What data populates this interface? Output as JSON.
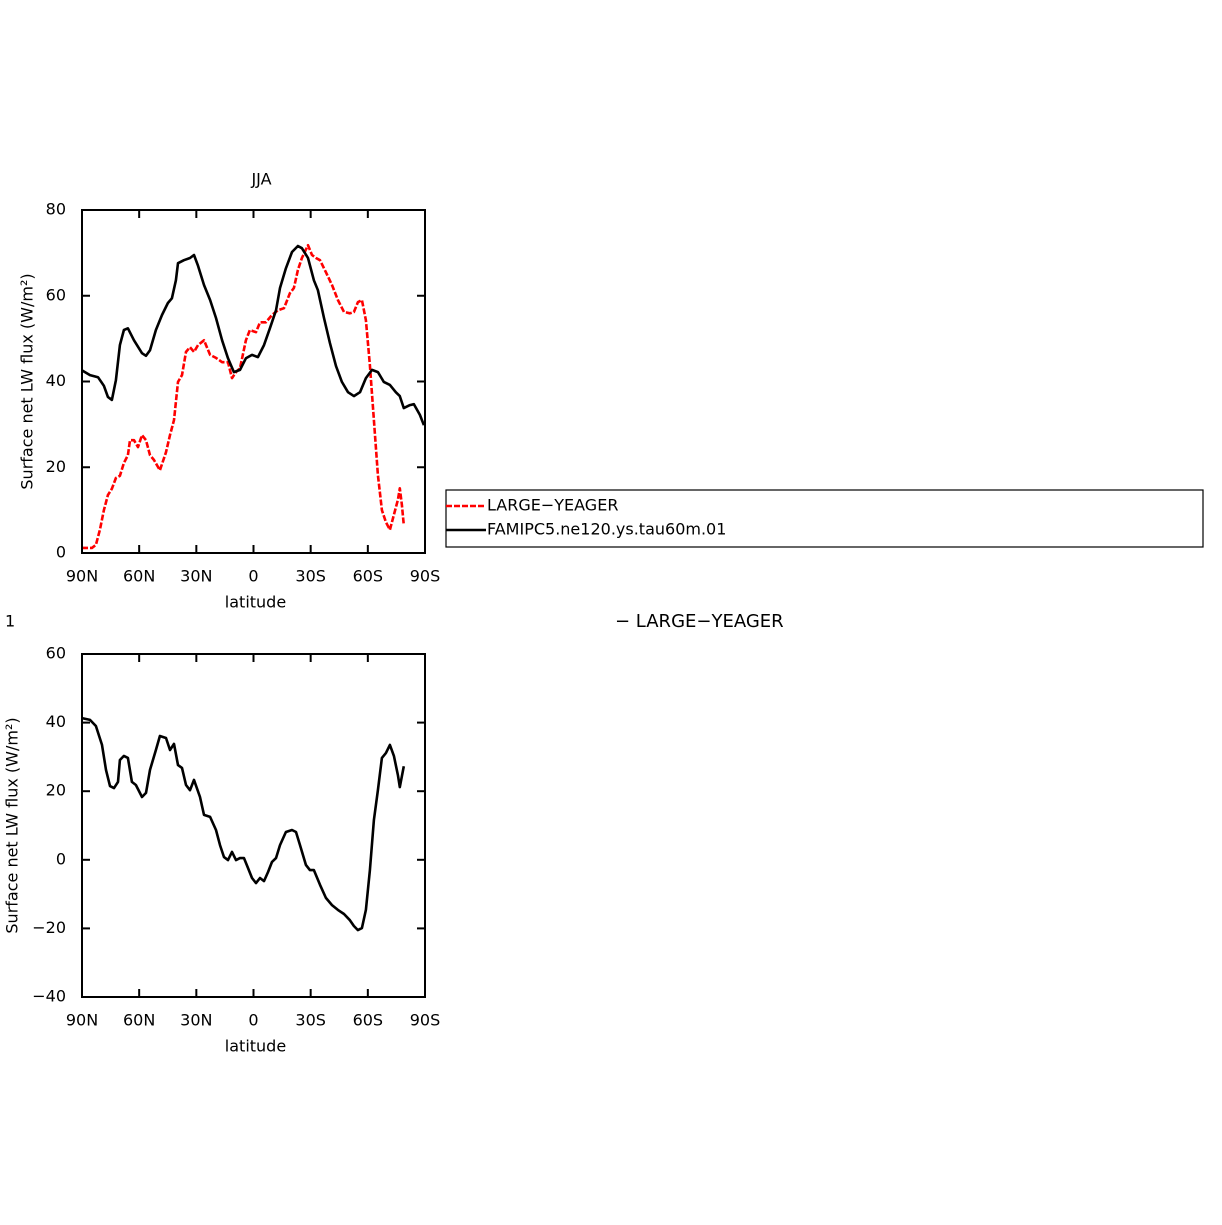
{
  "chart_data": [
    {
      "type": "line",
      "title": "JJA",
      "x_label": "latitude",
      "y_label": "Surface net LW flux (W/m²)",
      "xlim": [
        90,
        -90
      ],
      "ylim": [
        0,
        80
      ],
      "xticks": [
        {
          "value": 90,
          "label": "90N"
        },
        {
          "value": 60,
          "label": "60N"
        },
        {
          "value": 30,
          "label": "30N"
        },
        0,
        {
          "value": -30,
          "label": "30S"
        },
        {
          "value": -60,
          "label": "60S"
        },
        {
          "value": -90,
          "label": "90S"
        }
      ],
      "yticks": [
        0,
        20,
        40,
        60,
        80
      ],
      "series": [
        {
          "name": "LARGE−YEAGER",
          "color": "#ff0000",
          "linestyle": "dashed",
          "x": [
            90,
            84.8,
            82.7,
            80.6,
            78.5,
            76.4,
            74.3,
            72.2,
            70.1,
            68,
            65.9,
            64.8,
            62.7,
            60.6,
            58.5,
            56.4,
            54.3,
            52.2,
            49.1,
            45.9,
            43.8,
            41.7,
            39.6,
            37.5,
            35.4,
            33.3,
            31.2,
            29.1,
            26,
            22.8,
            19.7,
            16.5,
            13.4,
            11.3,
            9.2,
            7.1,
            4,
            1.9,
            -1.3,
            -3.4,
            -6.5,
            -9.7,
            -12.8,
            -16,
            -19.1,
            -21.2,
            -23.3,
            -25.4,
            -28.6,
            -30.7,
            -32.8,
            -34.9,
            -38,
            -41.2,
            -44.3,
            -47.5,
            -50.6,
            -52.7,
            -54.8,
            -56.9,
            -59,
            -61.1,
            -63.2,
            -65.3,
            -67.4,
            -69.5,
            -71.6,
            -73.7,
            -75.8,
            -76.8,
            -77.9,
            -78.9
          ],
          "values": [
            1.2,
            1.2,
            1.9,
            5.4,
            10,
            13.5,
            15,
            17.5,
            18,
            21,
            22.8,
            26.3,
            26.3,
            24.7,
            27.5,
            26.3,
            22.8,
            21.7,
            19.3,
            23.5,
            27.5,
            31,
            39.9,
            41.5,
            46.9,
            48,
            46.9,
            48.5,
            49.6,
            46.2,
            45.5,
            44.5,
            44.5,
            40.8,
            42.2,
            43.1,
            49.6,
            52,
            51.5,
            53.8,
            53.8,
            55.5,
            56.6,
            57.1,
            60.6,
            61.8,
            66,
            68.8,
            71.8,
            69.5,
            68.8,
            68.3,
            65.5,
            62.5,
            59,
            56.2,
            55.9,
            56.2,
            58.5,
            59,
            54.3,
            43.8,
            31,
            18.2,
            10,
            7.2,
            5.4,
            8.9,
            12.4,
            15.1,
            11.2,
            6.5
          ]
        },
        {
          "name": "FAMIPC5.ne120.ys.tau60m.01",
          "color": "#000000",
          "linestyle": "solid",
          "x": [
            90,
            85.8,
            81.6,
            78.5,
            76.4,
            74.3,
            72.2,
            70.1,
            68,
            65.9,
            62.7,
            58.5,
            56.4,
            54.3,
            51.2,
            48,
            44.9,
            42.8,
            40.7,
            39.6,
            36.5,
            33.3,
            31.2,
            29.1,
            26,
            22.8,
            19.7,
            16.5,
            13.4,
            10.3,
            7.1,
            4,
            0.8,
            -2.3,
            -5.5,
            -8.6,
            -11.8,
            -13.9,
            -17,
            -20.2,
            -23.3,
            -25.4,
            -28.6,
            -31.7,
            -33.8,
            -37,
            -40.1,
            -43.3,
            -46.4,
            -49.6,
            -52.7,
            -55.9,
            -59,
            -62.2,
            -65.3,
            -68.4,
            -71.6,
            -74.7,
            -76.8,
            -78.9,
            -82.1,
            -84.2,
            -87.3,
            -89.4
          ],
          "values": [
            42.6,
            41.5,
            41,
            39,
            36.4,
            35.7,
            40.3,
            48.5,
            52,
            52.4,
            49.6,
            46.6,
            46,
            47.3,
            52,
            55.5,
            58.3,
            59.4,
            63.6,
            67.6,
            68.3,
            68.8,
            69.5,
            67,
            62.5,
            59,
            54.8,
            49.6,
            45.4,
            42.2,
            42.7,
            45.4,
            46.2,
            45.7,
            48.5,
            52.4,
            56.6,
            61.8,
            66.4,
            70.2,
            71.6,
            71.1,
            68.8,
            63.6,
            61.3,
            54.8,
            49,
            43.6,
            39.9,
            37.5,
            36.6,
            37.5,
            40.8,
            42.7,
            42.2,
            39.9,
            39.2,
            37.5,
            36.6,
            33.8,
            34.5,
            34.7,
            32.2,
            29.8
          ]
        }
      ]
    },
    {
      "type": "line",
      "left_title": "1",
      "right_title": "− LARGE−YEAGER",
      "x_label": "latitude",
      "y_label": "Surface net LW flux (W/m²)",
      "xlim": [
        90,
        -90
      ],
      "ylim": [
        -40,
        60
      ],
      "xticks": [
        {
          "value": 90,
          "label": "90N"
        },
        {
          "value": 60,
          "label": "60N"
        },
        {
          "value": 30,
          "label": "30N"
        },
        0,
        {
          "value": -30,
          "label": "30S"
        },
        {
          "value": -60,
          "label": "60S"
        },
        {
          "value": -90,
          "label": "90S"
        }
      ],
      "yticks": [
        {
          "value": -40,
          "label": "−40"
        },
        {
          "value": -20,
          "label": "−20"
        },
        0,
        20,
        40,
        60
      ],
      "series": [
        {
          "color": "#000000",
          "linestyle": "solid",
          "x": [
            90,
            85.8,
            82.7,
            79.5,
            77.4,
            75.3,
            73.2,
            71.1,
            70.1,
            68,
            65.9,
            63.8,
            61.7,
            58.5,
            56.4,
            54.3,
            51.2,
            49.1,
            45.9,
            43.8,
            41.7,
            39.6,
            37.5,
            35.4,
            33.3,
            31.2,
            28.1,
            26,
            22.8,
            19.7,
            17.6,
            15.5,
            13.4,
            11.3,
            9.2,
            7.1,
            5,
            2.9,
            0.8,
            -1.3,
            -3.4,
            -5.5,
            -7.6,
            -9.7,
            -11.8,
            -13.9,
            -17,
            -20.2,
            -22.3,
            -24.4,
            -27.5,
            -29.6,
            -31.7,
            -34.9,
            -38,
            -41.2,
            -44.3,
            -47.5,
            -50.6,
            -52.7,
            -54.8,
            -56.9,
            -59,
            -61.1,
            -63.2,
            -65.3,
            -67.4,
            -69.5,
            -71.6,
            -73.7,
            -75.8,
            -76.8,
            -78.9
          ],
          "values": [
            41.3,
            40.8,
            39,
            33.5,
            26.2,
            21.5,
            20.9,
            22.7,
            29.1,
            30.3,
            29.7,
            22.7,
            21.8,
            18.3,
            19.5,
            26.2,
            32,
            36.1,
            35.5,
            32,
            33.8,
            27.6,
            26.8,
            21.8,
            20.3,
            23.3,
            18.3,
            13.1,
            12.5,
            8.7,
            4.3,
            0.8,
            -0.1,
            2.3,
            -0.1,
            0.5,
            0.5,
            -2.4,
            -5.3,
            -6.8,
            -5.3,
            -6.2,
            -3.6,
            -0.6,
            0.5,
            4.3,
            8.1,
            8.7,
            8.1,
            4.3,
            -1.5,
            -3,
            -3,
            -7.3,
            -11.1,
            -13.2,
            -14.6,
            -15.8,
            -17.6,
            -19.3,
            -20.5,
            -19.9,
            -14.6,
            -3,
            11.6,
            20.3,
            29.7,
            31.1,
            33.5,
            30.3,
            24.7,
            21.2,
            27.3
          ]
        }
      ]
    }
  ]
}
